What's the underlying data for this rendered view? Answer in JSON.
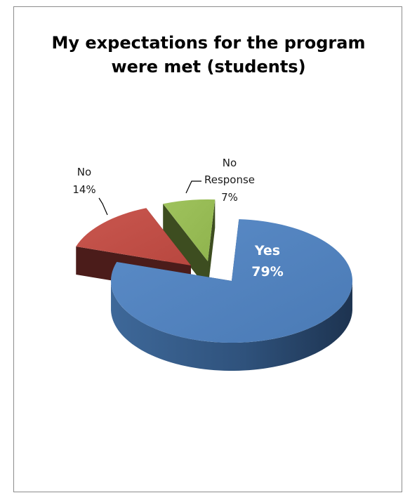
{
  "chart_data": {
    "type": "pie",
    "title": "My expectations for the program\nwere met (students)",
    "slices": [
      {
        "label": "Yes",
        "value": 79,
        "display": "79%",
        "color": "#4F81BD"
      },
      {
        "label": "No",
        "value": 14,
        "display": "14%",
        "color": "#C0504D"
      },
      {
        "label": "No Response",
        "value": 7,
        "display": "7%",
        "color": "#9BBB59"
      }
    ],
    "style": "3d-exploded",
    "legend": "none"
  }
}
